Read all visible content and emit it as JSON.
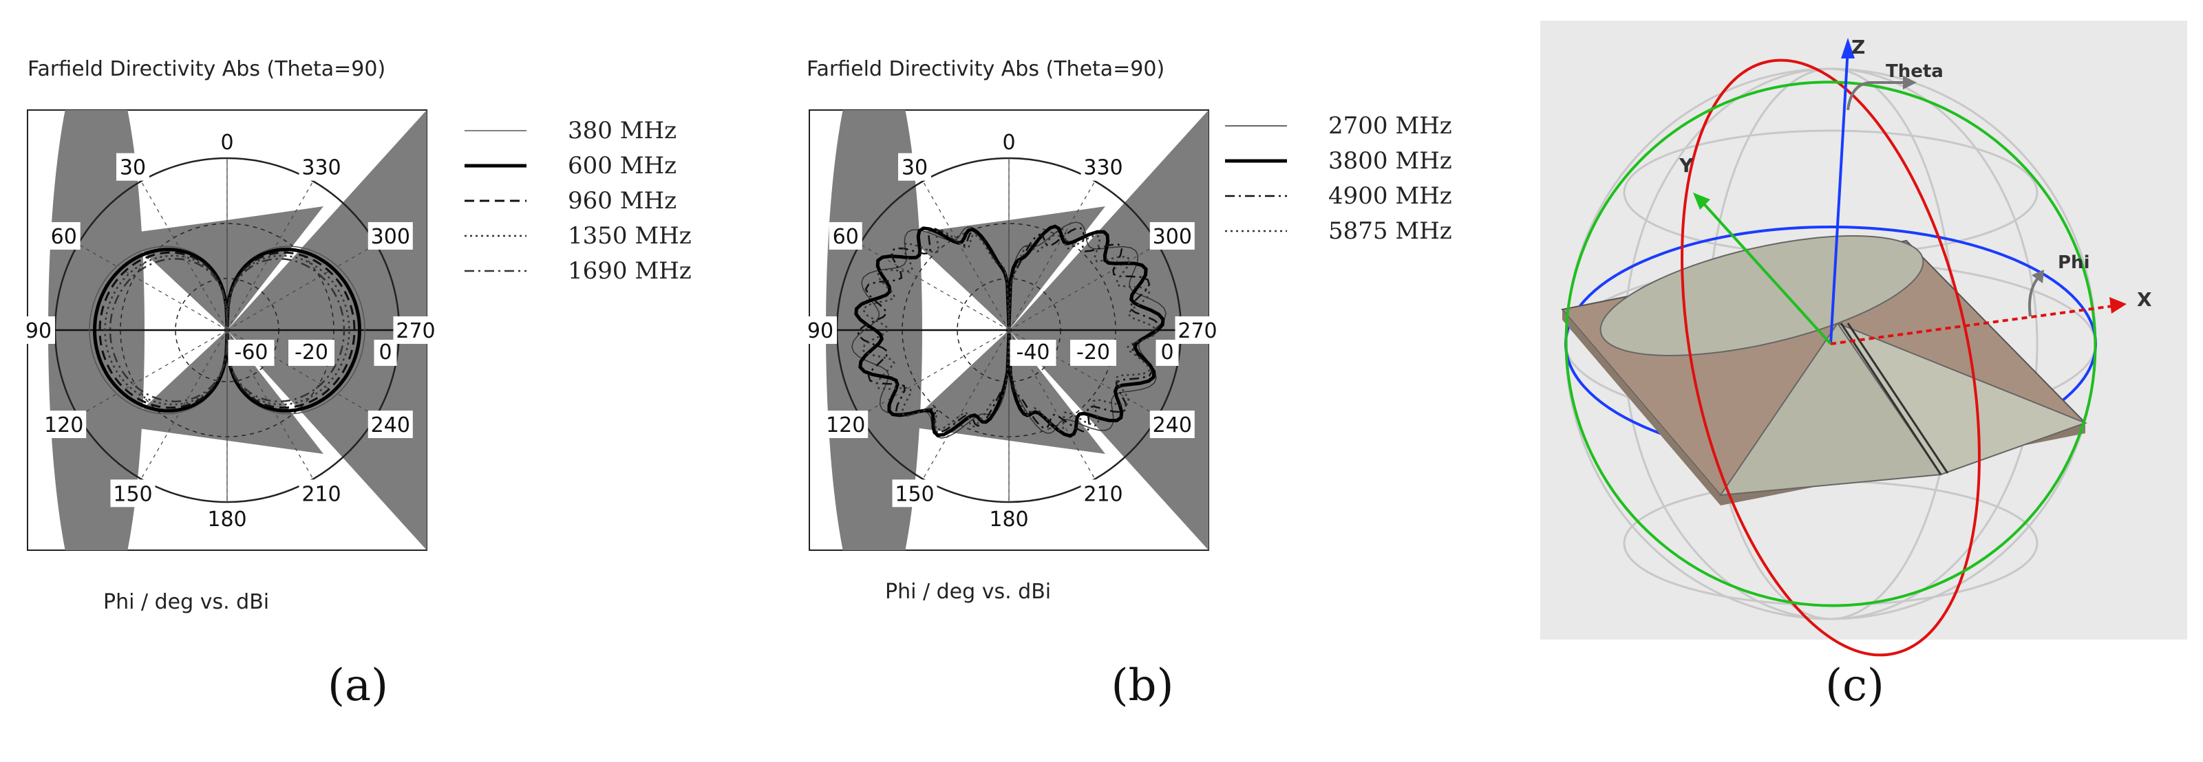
{
  "captions": {
    "a": "(a)",
    "b": "(b)",
    "c": "(c)"
  },
  "chart_data": [
    {
      "type": "polar",
      "title": "Farfield Directivity Abs (Theta=90)",
      "xlabel": "Phi / deg vs. dBi",
      "angle_labels": [
        "0",
        "30",
        "60",
        "90",
        "120",
        "150",
        "180",
        "210",
        "240",
        "270",
        "300",
        "330"
      ],
      "radial_labels": [
        "-60",
        "-20",
        "0"
      ],
      "series": [
        {
          "name": "380 MHz",
          "style": "thin-solid",
          "color": "#555555"
        },
        {
          "name": "600 MHz",
          "style": "thick-solid",
          "color": "#000000"
        },
        {
          "name": "960 MHz",
          "style": "dashed",
          "color": "#111111"
        },
        {
          "name": "1350 MHz",
          "style": "dotted",
          "color": "#333333"
        },
        {
          "name": "1690 MHz",
          "style": "dash-dot",
          "color": "#333333"
        }
      ]
    },
    {
      "type": "polar",
      "title": "Farfield Directivity Abs (Theta=90)",
      "xlabel": "Phi / deg vs. dBi",
      "angle_labels": [
        "0",
        "30",
        "60",
        "90",
        "120",
        "150",
        "180",
        "210",
        "240",
        "270",
        "300",
        "330"
      ],
      "radial_labels": [
        "-40",
        "-20",
        "0"
      ],
      "series": [
        {
          "name": "2700 MHz",
          "style": "thin-solid",
          "color": "#333333"
        },
        {
          "name": "3800 MHz",
          "style": "thick-solid",
          "color": "#000000"
        },
        {
          "name": "4900 MHz",
          "style": "dash-dot",
          "color": "#111111"
        },
        {
          "name": "5875 MHz",
          "style": "dotted",
          "color": "#333333"
        }
      ]
    }
  ],
  "diagram3d": {
    "axis_labels": {
      "z": "Z",
      "y": "Y",
      "x": "X",
      "theta": "Theta",
      "phi": "Phi"
    },
    "colors": {
      "z_axis": "#1a3cff",
      "y_axis": "#1fbf1f",
      "x_axis": "#e01010",
      "plate": "#a89080",
      "background": "#e9e9e9"
    }
  }
}
